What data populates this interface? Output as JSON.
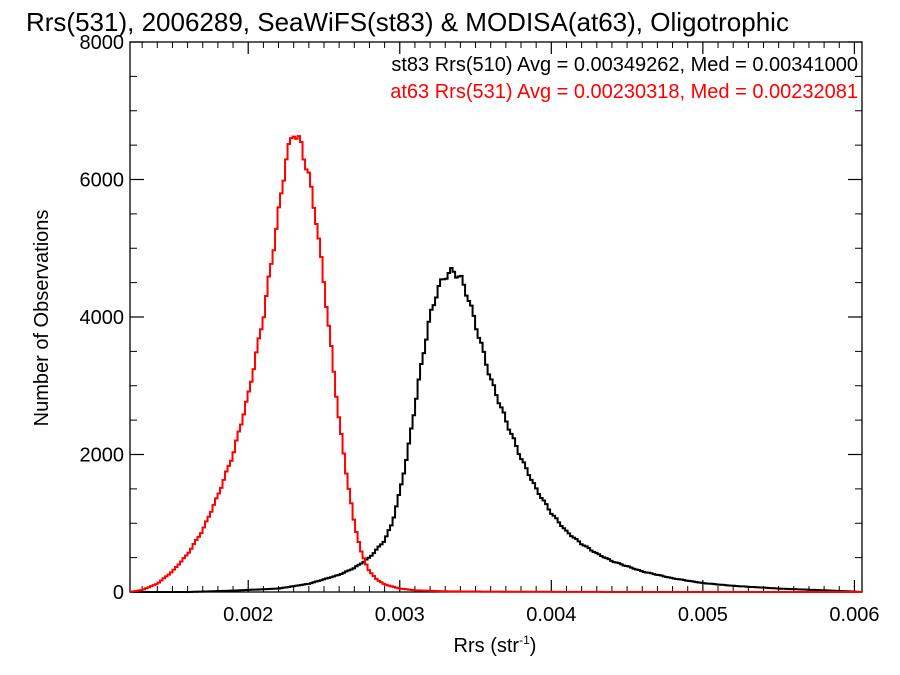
{
  "chart_data": {
    "type": "line",
    "title": "Rrs(531), 2006289, SeaWiFS(st83) & MODISA(at63), Oligotrophic",
    "xlabel": "Rrs (str",
    "xlabel_sup": "-1",
    "xlabel_end": ")",
    "ylabel": "Number of Observations",
    "xlim": [
      0.00122,
      0.00605
    ],
    "ylim": [
      0,
      8000
    ],
    "xticks": [
      0.002,
      0.003,
      0.004,
      0.005,
      0.006
    ],
    "xtick_labels": [
      "0.002",
      "0.003",
      "0.004",
      "0.005",
      "0.006"
    ],
    "yticks": [
      0,
      2000,
      4000,
      6000,
      8000
    ],
    "ytick_labels": [
      "0",
      "2000",
      "4000",
      "6000",
      "8000"
    ],
    "step": true,
    "grid": false,
    "series": [
      {
        "name": "st83 Rrs(510) Avg = 0.00349262, Med = 0.00341000",
        "color": "#000000",
        "x": [
          0.00122,
          0.0016,
          0.0019,
          0.0022,
          0.0024,
          0.0026,
          0.0027,
          0.0028,
          0.0029,
          0.00295,
          0.003,
          0.00305,
          0.0031,
          0.00315,
          0.0032,
          0.00325,
          0.0033,
          0.00335,
          0.0034,
          0.00345,
          0.0035,
          0.00355,
          0.0036,
          0.00365,
          0.0037,
          0.0038,
          0.0039,
          0.004,
          0.0041,
          0.0042,
          0.0043,
          0.0044,
          0.0046,
          0.0048,
          0.005,
          0.0052,
          0.0055,
          0.0058,
          0.00605
        ],
        "y": [
          0,
          0,
          20,
          50,
          120,
          250,
          350,
          500,
          750,
          1000,
          1450,
          2000,
          2700,
          3400,
          4000,
          4400,
          4600,
          4670,
          4580,
          4300,
          3900,
          3500,
          3100,
          2800,
          2500,
          1950,
          1500,
          1150,
          880,
          700,
          560,
          450,
          300,
          200,
          130,
          90,
          50,
          25,
          0
        ]
      },
      {
        "name": "at63 Rrs(531) Avg = 0.00230318, Med = 0.00232081",
        "color": "#ff0000",
        "x": [
          0.00122,
          0.0013,
          0.0014,
          0.0015,
          0.0016,
          0.0017,
          0.0018,
          0.0019,
          0.002,
          0.0021,
          0.0022,
          0.00225,
          0.0023,
          0.00235,
          0.0024,
          0.00245,
          0.0025,
          0.00255,
          0.0026,
          0.00265,
          0.0027,
          0.00275,
          0.0028,
          0.00285,
          0.0029,
          0.003,
          0.0031,
          0.0033,
          0.0036,
          0.0045,
          0.00605
        ],
        "y": [
          0,
          30,
          120,
          300,
          550,
          900,
          1400,
          2000,
          2850,
          4000,
          5500,
          6300,
          6700,
          6500,
          6050,
          5400,
          4500,
          3500,
          2500,
          1700,
          1000,
          550,
          300,
          180,
          110,
          50,
          25,
          10,
          5,
          0,
          0
        ]
      }
    ]
  }
}
